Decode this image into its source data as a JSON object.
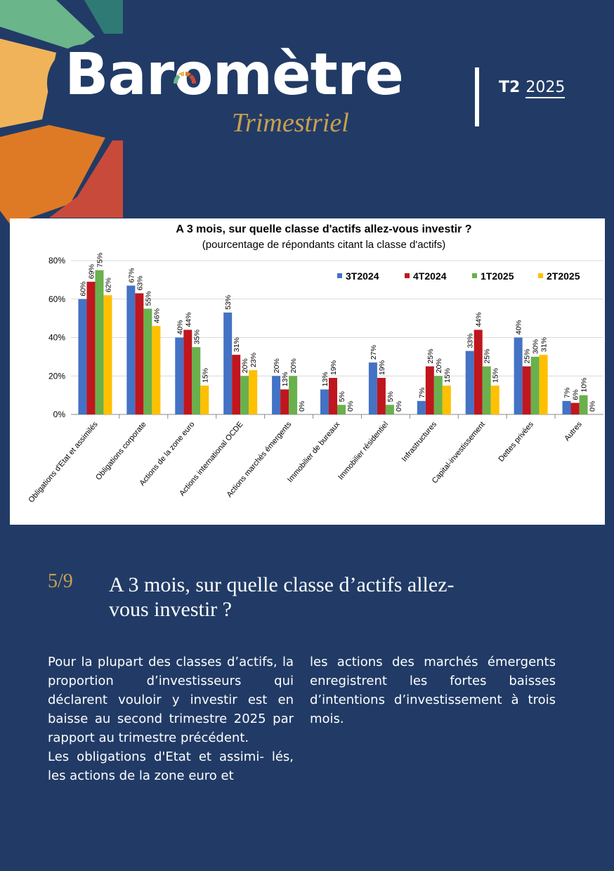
{
  "header": {
    "logo_title": "Baromètre",
    "logo_subtitle": "Trimestriel",
    "quarter": "T2",
    "year": "2025",
    "colors": {
      "navy": "#213b66",
      "gold": "#c9a04f"
    }
  },
  "chart_data": {
    "type": "bar",
    "title": "A 3 mois, sur quelle classe d'actifs allez-vous investir ?",
    "subtitle": "(pourcentage de répondants citant la classe d'actifs)",
    "categories": [
      "Obligations d'Etat et assimilés",
      "Obligations corporate",
      "Actions de la zone euro",
      "Actions international OCDE",
      "Actions marchés émergents",
      "Immobilier de bureaux",
      "Immobilier résidentiel",
      "Infrastructures",
      "Capital-investissement",
      "Dettes privées",
      "Autres"
    ],
    "series": [
      {
        "name": "3T2024",
        "color": "#4472c4",
        "values": [
          60,
          67,
          40,
          53,
          20,
          13,
          27,
          7,
          33,
          40,
          7
        ]
      },
      {
        "name": "4T2024",
        "color": "#c0161e",
        "values": [
          69,
          63,
          44,
          31,
          13,
          19,
          19,
          25,
          44,
          25,
          6
        ]
      },
      {
        "name": "1T2025",
        "color": "#6ab04c",
        "values": [
          75,
          55,
          35,
          20,
          20,
          5,
          5,
          20,
          25,
          30,
          10
        ]
      },
      {
        "name": "2T2025",
        "color": "#ffc000",
        "values": [
          62,
          46,
          15,
          23,
          0,
          0,
          0,
          15,
          15,
          31,
          0
        ]
      }
    ],
    "ylim": [
      0,
      80
    ],
    "yticks": [
      "0%",
      "20%",
      "40%",
      "60%",
      "80%"
    ],
    "legend_position": "top-right",
    "grid": true
  },
  "section": {
    "number": "5/9",
    "title": "A 3 mois, sur quelle classe d’actifs allez-vous investir ?"
  },
  "body": {
    "col1_p1": "Pour la plupart des classes d’actifs, la proportion d’investisseurs qui déclarent vouloir y investir est en baisse au second trimestre 2025 par rapport au trimestre précédent.",
    "col1_p2": "Les obligations d'Etat et assimi- lés, les actions de la zone euro et",
    "col2_p1": "les actions des marchés émergents enregistrent les fortes baisses d’intentions d’investissement à trois mois."
  }
}
